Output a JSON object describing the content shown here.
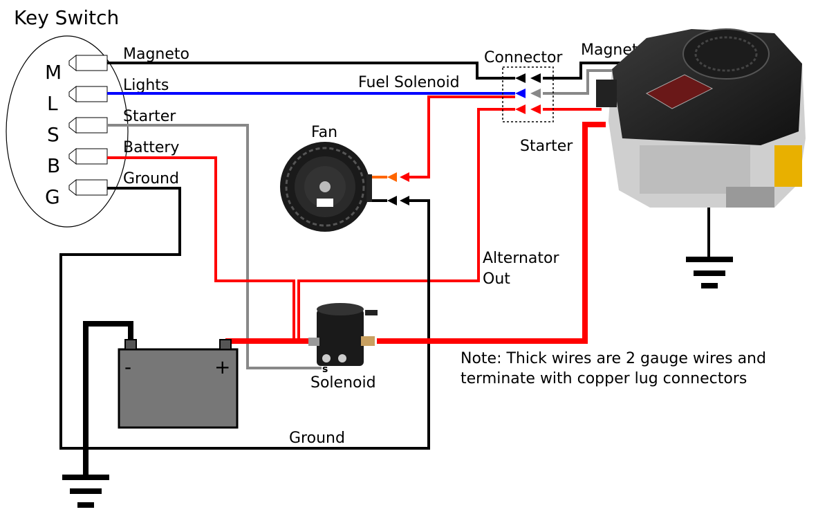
{
  "title": "Key Switch",
  "terminals": [
    {
      "letter": "M",
      "name": "Magneto"
    },
    {
      "letter": "L",
      "name": "Lights"
    },
    {
      "letter": "S",
      "name": "Starter"
    },
    {
      "letter": "B",
      "name": "Battery"
    },
    {
      "letter": "G",
      "name": "Ground"
    }
  ],
  "components": {
    "connector": "Connector",
    "fan": "Fan",
    "solenoid": "Solenoid",
    "solenoid_terminal": "s",
    "battery_neg": "-",
    "battery_pos": "+"
  },
  "labels": {
    "magneto_engine": "Magneto",
    "fuel_solenoid": "Fuel Solenoid",
    "starter_engine": "Starter",
    "alternator_line1": "Alternator",
    "alternator_line2": "Out",
    "ground_bottom": "Ground"
  },
  "note": {
    "line1": "Note: Thick wires are 2 gauge wires and",
    "line2": "terminate with copper lug connectors"
  },
  "colors": {
    "magneto": "#000000",
    "lights": "#0000ff",
    "starter": "#888888",
    "battery": "#ff0000",
    "ground": "#000000",
    "fan_power": "#ff6600"
  }
}
